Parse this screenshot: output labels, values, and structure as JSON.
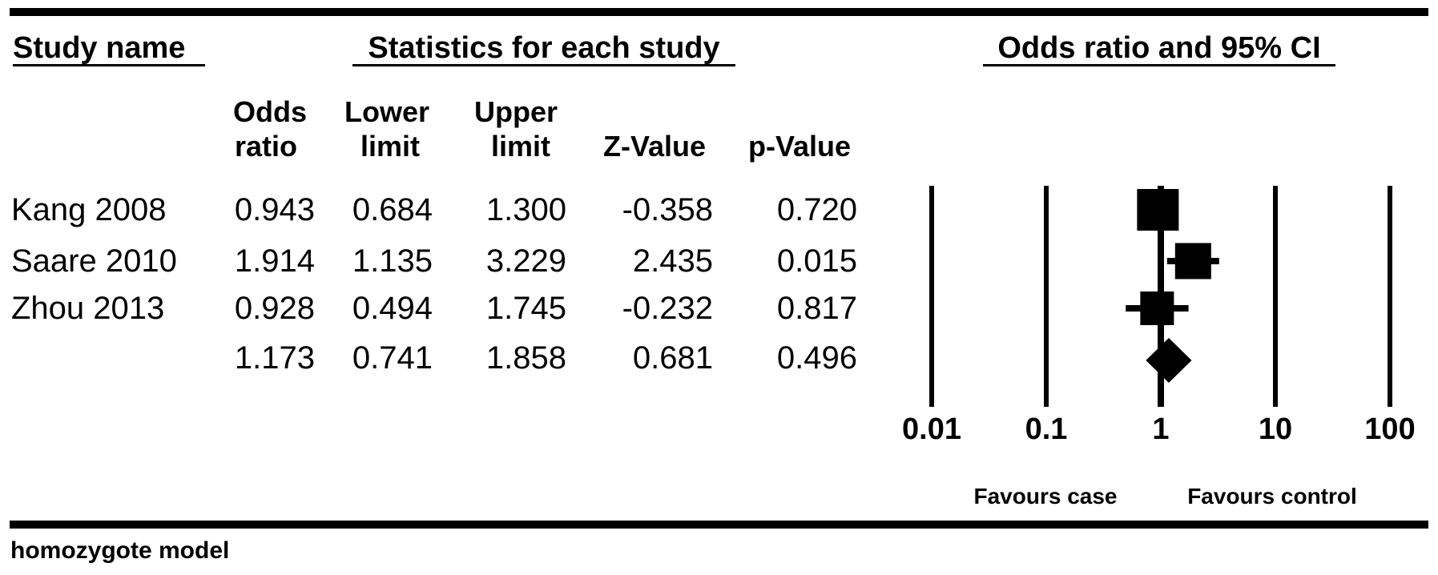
{
  "header": {
    "study_name": "Study name",
    "statistics": "Statistics for each study",
    "plot_title": "Odds ratio and 95% CI"
  },
  "columns": {
    "odds": [
      "Odds",
      "ratio"
    ],
    "lower": [
      "Lower",
      "limit"
    ],
    "upper": [
      "Upper",
      "limit"
    ],
    "z": "Z-Value",
    "p": "p-Value"
  },
  "studies": [
    {
      "name": "Kang 2008",
      "odds_ratio": "0.943",
      "lower": "0.684",
      "upper": "1.300",
      "z": "-0.358",
      "p": "0.720"
    },
    {
      "name": "Saare 2010",
      "odds_ratio": "1.914",
      "lower": "1.135",
      "upper": "3.229",
      "z": "2.435",
      "p": "0.015"
    },
    {
      "name": "Zhou 2013",
      "odds_ratio": "0.928",
      "lower": "0.494",
      "upper": "1.745",
      "z": "-0.232",
      "p": "0.817"
    }
  ],
  "summary_row": {
    "odds_ratio": "1.173",
    "lower": "0.741",
    "upper": "1.858",
    "z": "0.681",
    "p": "0.496"
  },
  "footer": {
    "caption": "homozygote model"
  },
  "chart_data": {
    "type": "forest",
    "x_scale": "log10",
    "x_ticks": [
      0.01,
      0.1,
      1,
      10,
      100
    ],
    "x_range": [
      0.01,
      100
    ],
    "null_line": 1,
    "grid": true,
    "studies": [
      {
        "name": "Kang 2008",
        "odds_ratio": 0.943,
        "ci_lower": 0.684,
        "ci_upper": 1.3,
        "z_value": -0.358,
        "p_value": 0.72
      },
      {
        "name": "Saare 2010",
        "odds_ratio": 1.914,
        "ci_lower": 1.135,
        "ci_upper": 3.229,
        "z_value": 2.435,
        "p_value": 0.015
      },
      {
        "name": "Zhou 2013",
        "odds_ratio": 0.928,
        "ci_lower": 0.494,
        "ci_upper": 1.745,
        "z_value": -0.232,
        "p_value": 0.817
      }
    ],
    "summary": {
      "odds_ratio": 1.173,
      "ci_lower": 0.741,
      "ci_upper": 1.858,
      "z_value": 0.681,
      "p_value": 0.496
    },
    "legend_left": "Favours case",
    "legend_right": "Favours control",
    "marker_color": "#000000"
  }
}
